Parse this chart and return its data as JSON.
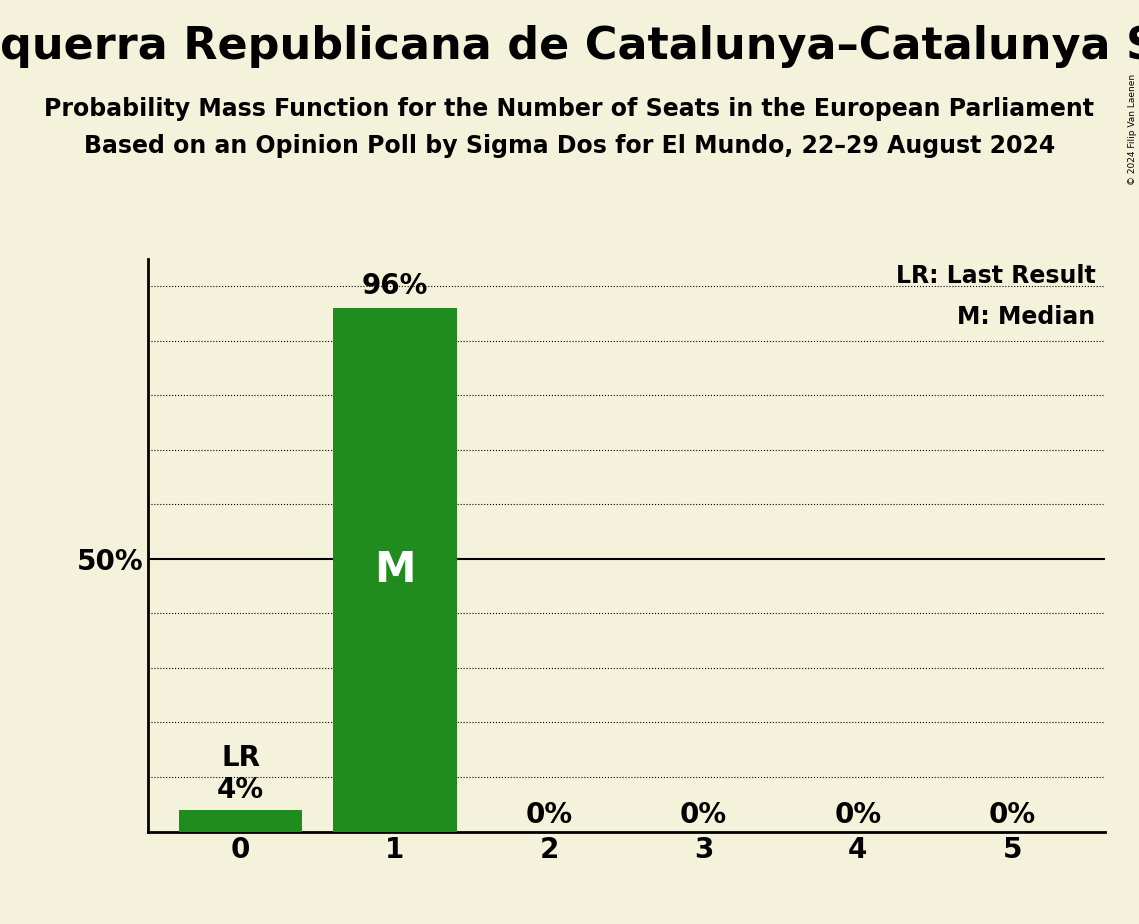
{
  "title": "Esquerra Republicana de Catalunya–Catalunya Sí (Greens/EFA)",
  "subtitle1": "Probability Mass Function for the Number of Seats in the European Parliament",
  "subtitle2": "Based on an Opinion Poll by Sigma Dos for El Mundo, 22–29 August 2024",
  "categories": [
    0,
    1,
    2,
    3,
    4,
    5
  ],
  "values": [
    0.04,
    0.96,
    0.0,
    0.0,
    0.0,
    0.0
  ],
  "bar_color": "#218c1e",
  "background_color": "#f5f2dc",
  "median_bar": 1,
  "last_result_bar": 0,
  "legend_lr": "LR: Last Result",
  "legend_m": "M: Median",
  "copyright": "© 2024 Filip Van Laenen",
  "ylim": [
    0,
    1.05
  ],
  "yticks": [
    0.0,
    0.1,
    0.2,
    0.3,
    0.4,
    0.5,
    0.6,
    0.7,
    0.8,
    0.9,
    1.0
  ],
  "title_fontsize": 32,
  "subtitle_fontsize": 17,
  "tick_fontsize": 20,
  "annot_fontsize": 20,
  "legend_fontsize": 17,
  "m_fontsize": 30
}
